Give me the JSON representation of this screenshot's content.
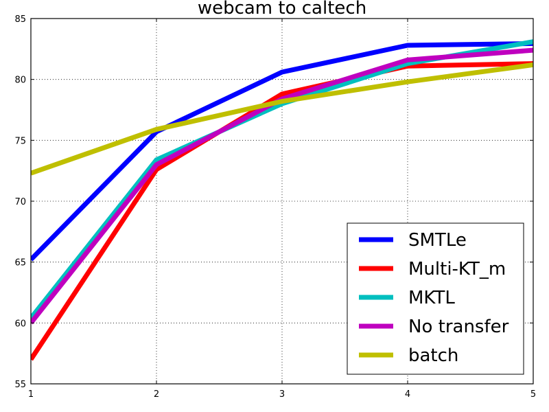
{
  "chart_data": {
    "type": "line",
    "title": "webcam to caltech",
    "xlabel": "",
    "ylabel": "",
    "x": [
      1,
      2,
      3,
      4,
      5
    ],
    "xticks": [
      "1",
      "2",
      "3",
      "4",
      "5"
    ],
    "yticks": [
      "55",
      "60",
      "65",
      "70",
      "75",
      "80",
      "85"
    ],
    "xlim": [
      1,
      5
    ],
    "ylim": [
      55,
      85
    ],
    "grid": true,
    "legend_position": "lower-right",
    "series": [
      {
        "name": "SMTLe",
        "color": "#0000ff",
        "values": [
          65.2,
          75.7,
          80.6,
          82.8,
          82.95
        ]
      },
      {
        "name": "Multi-KT_m",
        "color": "#ff0000",
        "values": [
          57.0,
          72.6,
          78.8,
          81.1,
          81.3
        ]
      },
      {
        "name": "MKTL",
        "color": "#00bfbf",
        "values": [
          60.4,
          73.4,
          78.0,
          81.3,
          83.1
        ]
      },
      {
        "name": "No transfer",
        "color": "#bf00bf",
        "values": [
          60.0,
          73.0,
          78.4,
          81.6,
          82.4
        ]
      },
      {
        "name": "batch",
        "color": "#bfbf00",
        "values": [
          72.3,
          75.9,
          78.2,
          79.8,
          81.2
        ]
      }
    ]
  }
}
